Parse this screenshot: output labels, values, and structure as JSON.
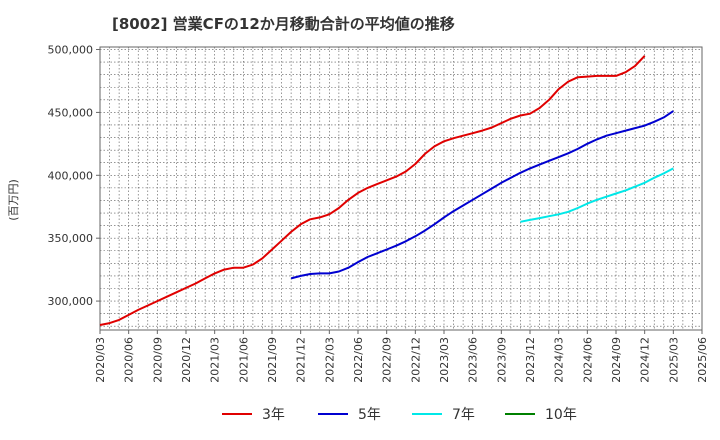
{
  "chart_data": {
    "type": "line",
    "title": "[8002]  営業CFの12か月移動合計の平均値の推移",
    "ylabel": "(百万円)",
    "xlabel": "",
    "ylim": [
      277000,
      502000
    ],
    "y_ticks": [
      300000,
      350000,
      400000,
      450000,
      500000
    ],
    "y_tick_labels": [
      "300,000",
      "350,000",
      "400,000",
      "450,000",
      "500,000"
    ],
    "x_range": [
      "2020-03",
      "2025-06"
    ],
    "x_ticks": [
      "2020/03",
      "2020/06",
      "2020/09",
      "2020/12",
      "2021/03",
      "2021/06",
      "2021/09",
      "2021/12",
      "2022/03",
      "2022/06",
      "2022/09",
      "2022/12",
      "2023/03",
      "2023/06",
      "2023/09",
      "2023/12",
      "2024/03",
      "2024/06",
      "2024/09",
      "2024/12",
      "2025/03",
      "2025/06"
    ],
    "grid": true,
    "legend_position": "bottom",
    "series": [
      {
        "name": "3年",
        "color": "#e00000",
        "start": "2020-03",
        "values": [
          281000,
          282500,
          285000,
          289000,
          293000,
          296500,
          300000,
          303500,
          307000,
          310500,
          314000,
          318000,
          322000,
          325000,
          326500,
          326500,
          329000,
          334000,
          341000,
          348000,
          355000,
          361000,
          365000,
          366500,
          369000,
          374000,
          380500,
          386000,
          390000,
          393000,
          396000,
          399000,
          403000,
          409000,
          417000,
          423000,
          427000,
          429500,
          431500,
          433500,
          435500,
          438000,
          441500,
          445000,
          447500,
          449000,
          453500,
          460000,
          468500,
          474500,
          478000,
          478500,
          479000,
          479000,
          479000,
          482000,
          487000,
          495000
        ]
      },
      {
        "name": "5年",
        "color": "#0000d0",
        "start": "2021-11",
        "values": [
          318000,
          320000,
          321500,
          322000,
          322000,
          323500,
          326500,
          331000,
          335000,
          338000,
          341000,
          344000,
          347500,
          351500,
          356000,
          361000,
          366500,
          371500,
          376000,
          380500,
          385000,
          389500,
          394000,
          398000,
          402000,
          405500,
          408500,
          411500,
          414500,
          417500,
          421000,
          425000,
          428500,
          431500,
          433500,
          435500,
          437500,
          439500,
          442500,
          446000,
          451000
        ]
      },
      {
        "name": "7年",
        "color": "#00e8e8",
        "start": "2023-11",
        "values": [
          363000,
          364500,
          366000,
          367500,
          369000,
          371000,
          374000,
          377500,
          380500,
          383000,
          385500,
          388000,
          391000,
          394000,
          398000,
          401500,
          405500
        ]
      },
      {
        "name": "10年",
        "color": "#008000",
        "start": "2025-03",
        "values": []
      }
    ]
  }
}
